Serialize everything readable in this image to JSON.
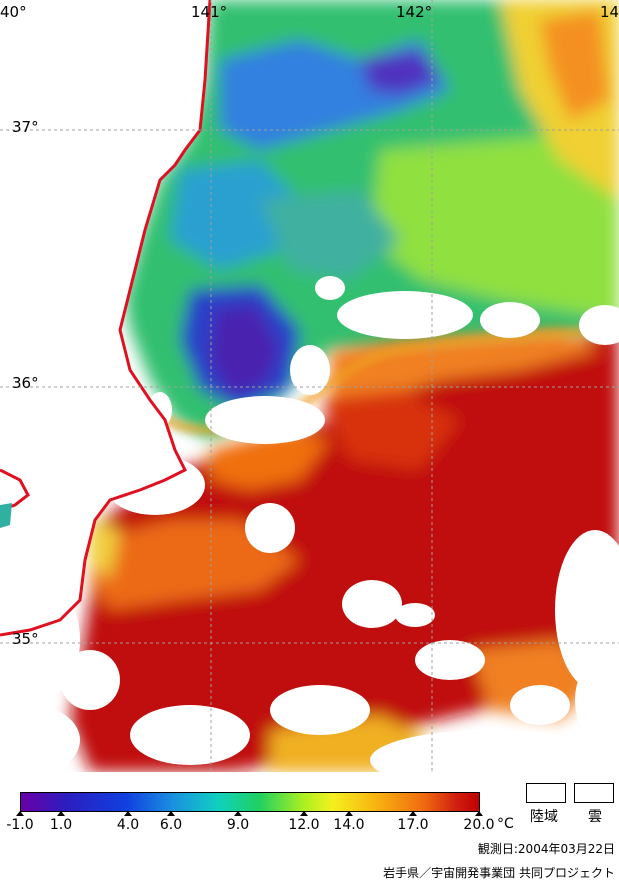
{
  "map": {
    "longitude_labels": [
      "40°",
      "141°",
      "142°",
      "14"
    ],
    "latitude_labels": [
      "37°",
      "36°",
      "35°"
    ]
  },
  "legend": {
    "tick_labels": [
      "-1.0",
      "1.0",
      "4.0",
      "6.0",
      "9.0",
      "12.0",
      "14.0",
      "17.0",
      "20.0"
    ],
    "unit": "°C",
    "land_label": "陸域",
    "cloud_label": "雲"
  },
  "observation_date": "観測日:2004年03月22日",
  "credit": "岩手県／宇宙開発事業団 共同プロジェクト"
}
